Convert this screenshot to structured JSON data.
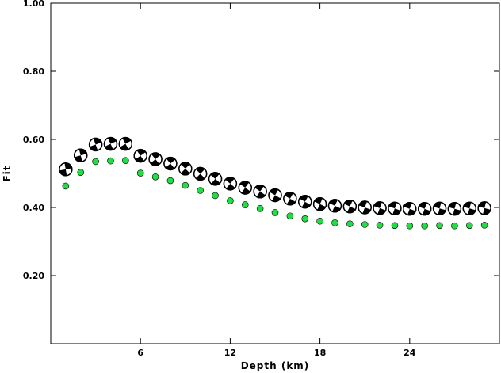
{
  "chart_data": {
    "type": "scatter",
    "title": "",
    "xlabel": "Depth (km)",
    "ylabel": "Fit",
    "xlim": [
      0.0,
      30.0
    ],
    "ylim": [
      0.0,
      1.0
    ],
    "x_ticks": [
      {
        "value": 6,
        "label": "6"
      },
      {
        "value": 12,
        "label": "12"
      },
      {
        "value": 18,
        "label": "18"
      },
      {
        "value": 24,
        "label": "24"
      }
    ],
    "y_ticks": [
      {
        "value": 0.2,
        "label": "0.20"
      },
      {
        "value": 0.4,
        "label": "0.40"
      },
      {
        "value": 0.6,
        "label": "0.60"
      },
      {
        "value": 0.8,
        "label": "0.80"
      },
      {
        "value": 1.0,
        "label": "1.00"
      }
    ],
    "grid": false,
    "colors": {
      "secondary_marker": "#22dd44",
      "mechanism_fill": "#000000",
      "mechanism_background": "#ffffff"
    },
    "series": [
      {
        "marker": "focal-mechanism",
        "x": [
          1,
          2,
          3,
          4,
          5,
          6,
          7,
          8,
          9,
          10,
          11,
          12,
          13,
          14,
          15,
          16,
          17,
          18,
          19,
          20,
          21,
          22,
          23,
          24,
          25,
          26,
          27,
          28,
          29
        ],
        "y": [
          0.512,
          0.553,
          0.585,
          0.587,
          0.587,
          0.552,
          0.542,
          0.529,
          0.514,
          0.499,
          0.484,
          0.47,
          0.458,
          0.447,
          0.436,
          0.426,
          0.417,
          0.41,
          0.405,
          0.403,
          0.4,
          0.398,
          0.397,
          0.396,
          0.396,
          0.397,
          0.396,
          0.397,
          0.398
        ],
        "rotation_deg": [
          10,
          15,
          20,
          25,
          30,
          35,
          40,
          40,
          45,
          45,
          50,
          50,
          55,
          55,
          60,
          60,
          60,
          65,
          65,
          65,
          70,
          70,
          70,
          70,
          70,
          75,
          75,
          75,
          75
        ]
      },
      {
        "marker": "circle",
        "x": [
          1,
          2,
          3,
          4,
          5,
          6,
          7,
          8,
          9,
          10,
          11,
          12,
          13,
          14,
          15,
          16,
          17,
          18,
          19,
          20,
          21,
          22,
          23,
          24,
          25,
          26,
          27,
          28,
          29
        ],
        "y": [
          0.463,
          0.503,
          0.535,
          0.537,
          0.538,
          0.501,
          0.49,
          0.479,
          0.465,
          0.45,
          0.435,
          0.42,
          0.408,
          0.397,
          0.385,
          0.375,
          0.367,
          0.36,
          0.355,
          0.352,
          0.35,
          0.348,
          0.347,
          0.346,
          0.346,
          0.347,
          0.346,
          0.347,
          0.348
        ]
      }
    ]
  }
}
